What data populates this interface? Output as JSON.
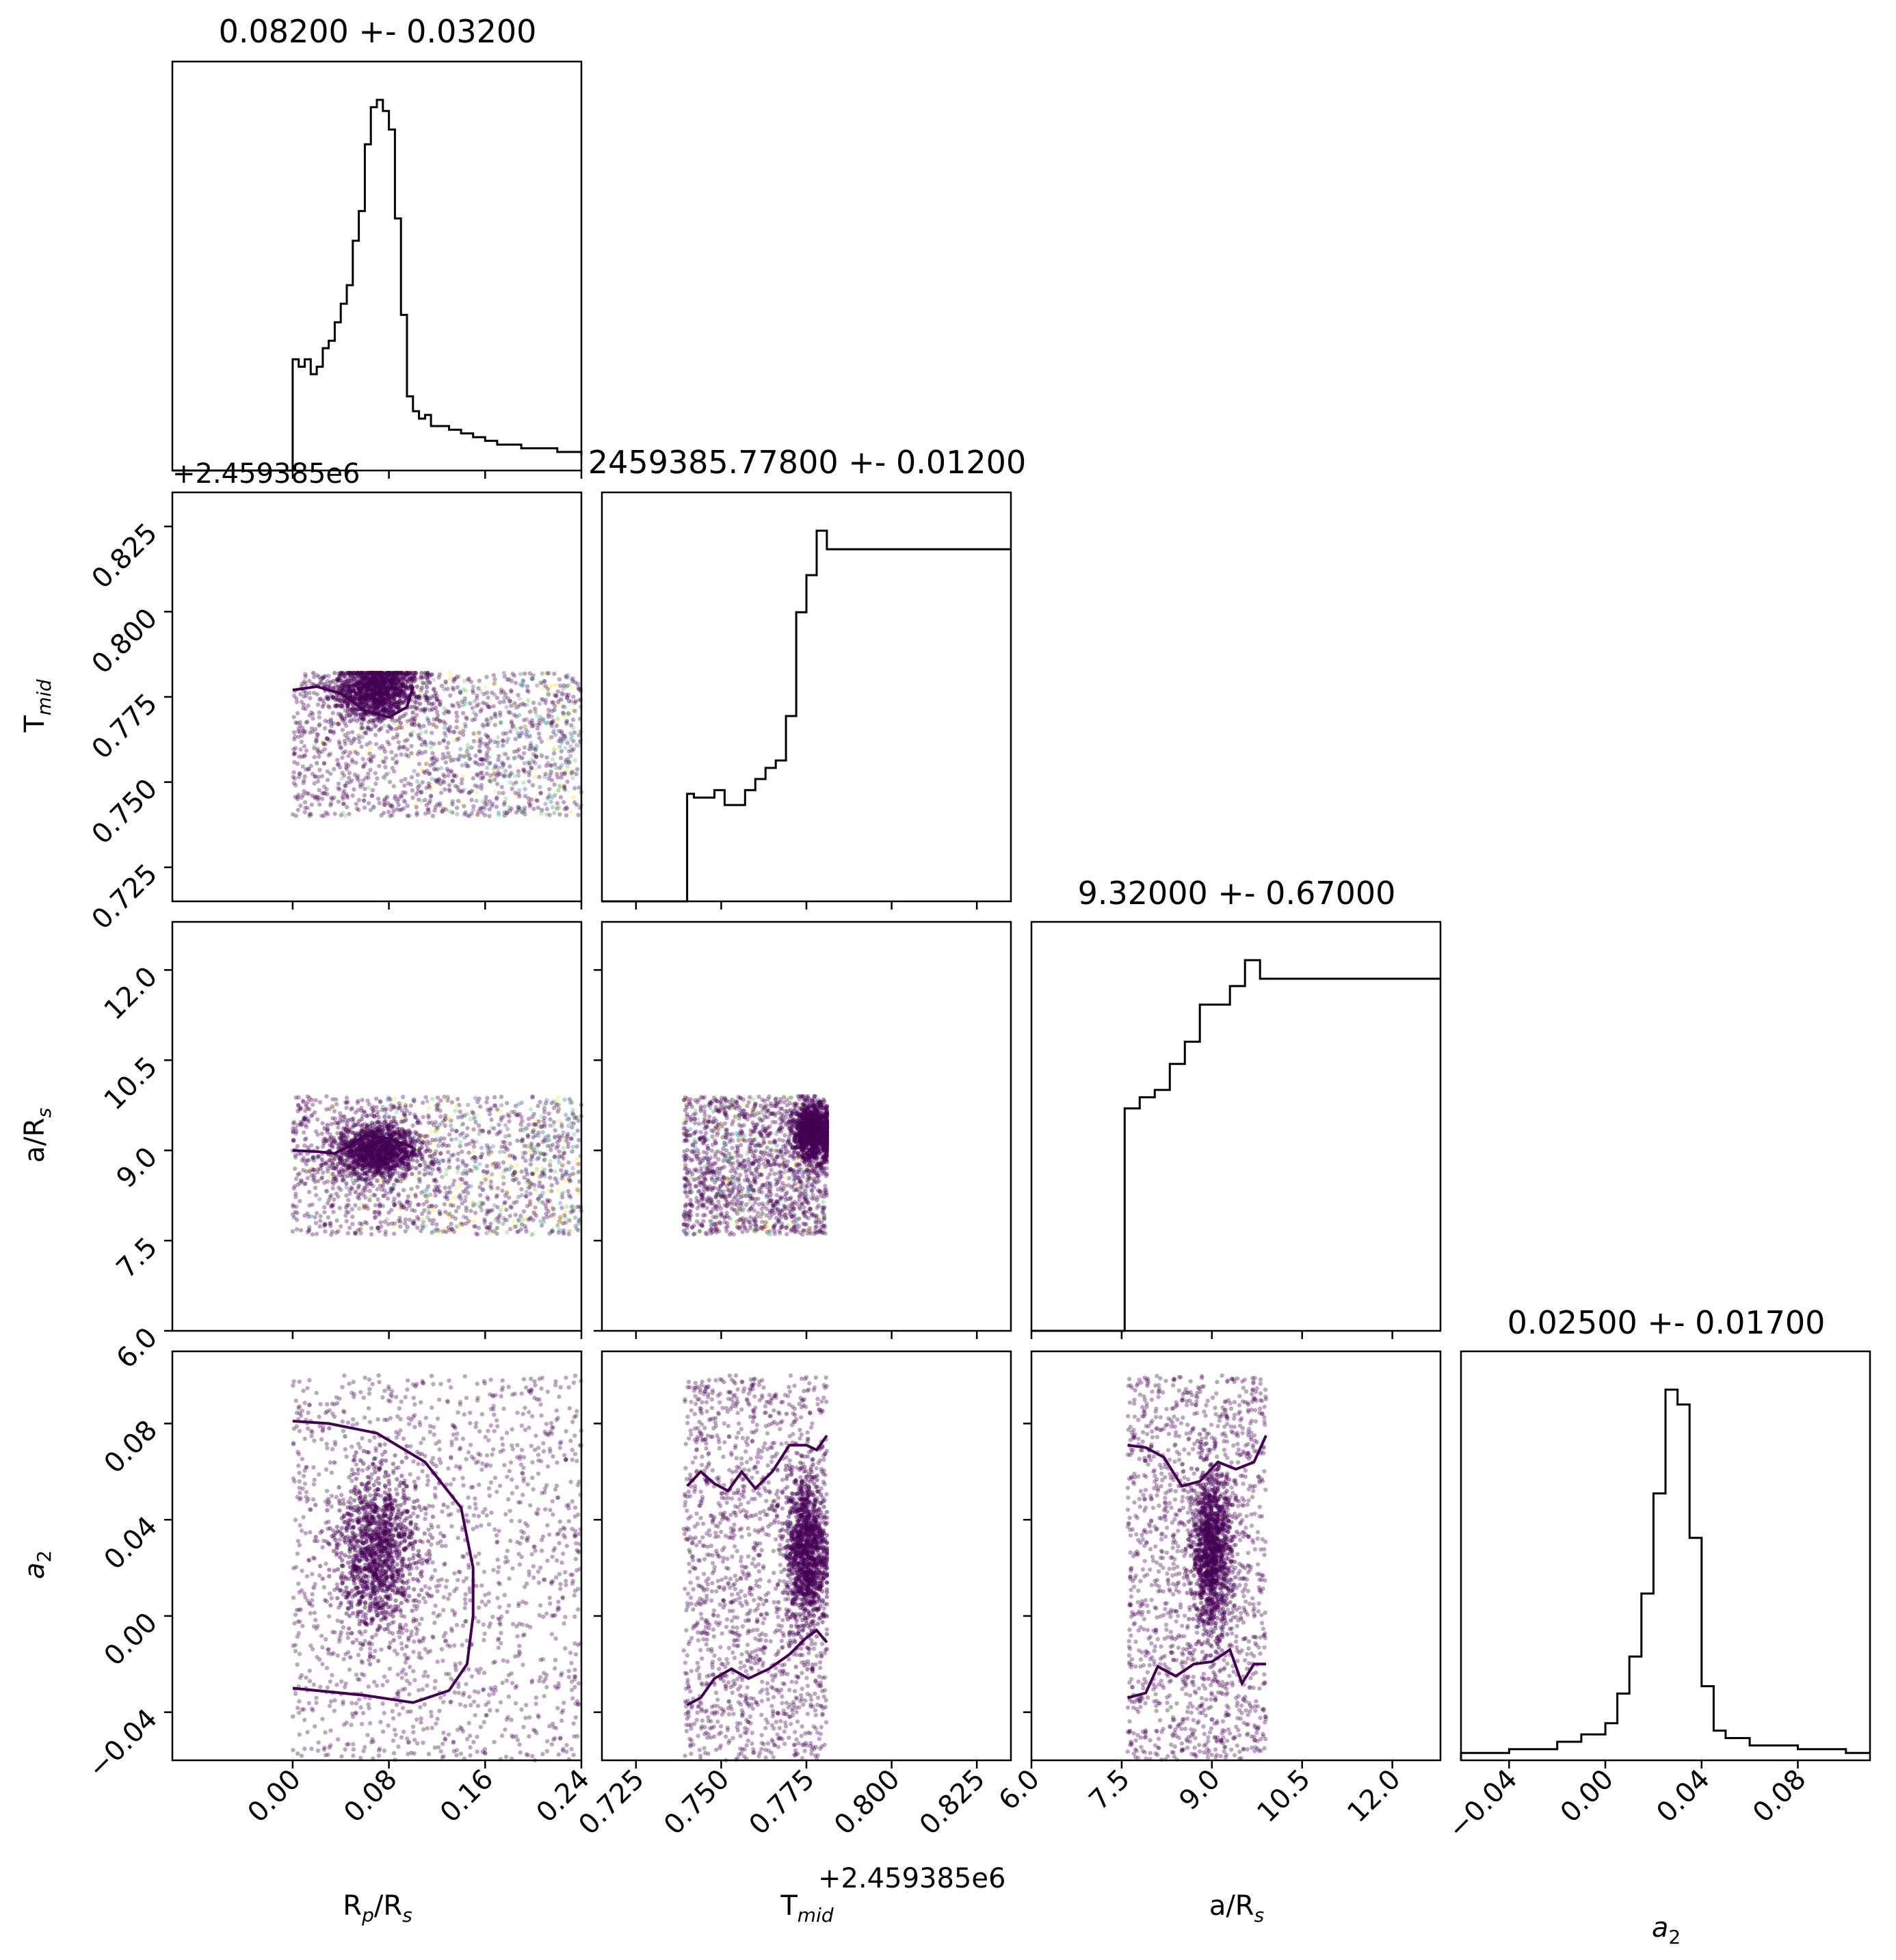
{
  "chart_data": [
    {
      "type": "histogram",
      "panel": "diag-rp",
      "title": "0.08200 +- 0.03200",
      "x": [
        -0.08,
        -0.07,
        -0.06,
        -0.05,
        -0.04,
        -0.03,
        -0.02,
        -0.01,
        0.0,
        0.005,
        0.01,
        0.015,
        0.02,
        0.025,
        0.03,
        0.035,
        0.04,
        0.045,
        0.05,
        0.055,
        0.06,
        0.065,
        0.07,
        0.075,
        0.08,
        0.085,
        0.09,
        0.095,
        0.1,
        0.105,
        0.11,
        0.115,
        0.12,
        0.13,
        0.14,
        0.15,
        0.16,
        0.17,
        0.18,
        0.19,
        0.2,
        0.21,
        0.22,
        0.23,
        0.24
      ],
      "values": [
        0,
        0,
        0,
        0,
        0,
        0,
        0,
        0,
        0.3,
        0.28,
        0.3,
        0.26,
        0.28,
        0.33,
        0.35,
        0.4,
        0.45,
        0.5,
        0.62,
        0.7,
        0.88,
        0.98,
        1.0,
        0.97,
        0.92,
        0.68,
        0.42,
        0.2,
        0.16,
        0.14,
        0.15,
        0.12,
        0.12,
        0.11,
        0.1,
        0.09,
        0.08,
        0.07,
        0.07,
        0.06,
        0.06,
        0.06,
        0.05,
        0.05,
        0.04
      ],
      "xlim": [
        -0.1,
        0.24
      ]
    },
    {
      "type": "histogram",
      "panel": "diag-tmid",
      "title": "2459385.77800 +- 0.01200",
      "x": [
        0.72,
        0.74,
        0.742,
        0.745,
        0.748,
        0.751,
        0.754,
        0.757,
        0.76,
        0.763,
        0.766,
        0.769,
        0.772,
        0.775,
        0.778,
        0.781
      ],
      "values": [
        0,
        0.29,
        0.28,
        0.28,
        0.3,
        0.26,
        0.26,
        0.3,
        0.33,
        0.36,
        0.38,
        0.5,
        0.78,
        0.88,
        1.0,
        0.95
      ],
      "xlim": [
        0.715,
        0.835
      ]
    },
    {
      "type": "histogram",
      "panel": "diag-ars",
      "title": "9.32000 +- 0.67000",
      "x": [
        6.0,
        7.55,
        7.8,
        8.05,
        8.3,
        8.55,
        8.8,
        9.05,
        9.3,
        9.55,
        9.8
      ],
      "values": [
        0,
        0.6,
        0.63,
        0.65,
        0.72,
        0.78,
        0.88,
        0.88,
        0.93,
        1.0,
        0.95
      ],
      "xlim": [
        6.0,
        12.8
      ]
    },
    {
      "type": "histogram",
      "panel": "diag-a2",
      "title": "0.02500 +- 0.01700",
      "x": [
        -0.06,
        -0.04,
        -0.02,
        -0.01,
        0.0,
        0.005,
        0.01,
        0.015,
        0.02,
        0.025,
        0.03,
        0.035,
        0.04,
        0.045,
        0.05,
        0.06,
        0.08,
        0.1
      ],
      "values": [
        0.02,
        0.03,
        0.05,
        0.07,
        0.1,
        0.18,
        0.28,
        0.45,
        0.72,
        1.0,
        0.96,
        0.6,
        0.2,
        0.08,
        0.06,
        0.04,
        0.03,
        0.02
      ],
      "xlim": [
        -0.06,
        0.11
      ]
    },
    {
      "type": "scatter",
      "panel": "tmid-vs-rp",
      "x_range": [
        0.0,
        0.24
      ],
      "y_range": [
        0.74,
        0.782
      ],
      "dense_center": [
        0.07,
        0.777
      ]
    },
    {
      "type": "scatter",
      "panel": "ars-vs-rp",
      "x_range": [
        0.0,
        0.24
      ],
      "y_range": [
        7.6,
        9.9
      ],
      "dense_center": [
        0.07,
        9.0
      ]
    },
    {
      "type": "scatter",
      "panel": "ars-vs-tmid",
      "x_range": [
        0.739,
        0.781
      ],
      "y_range": [
        7.6,
        9.9
      ],
      "dense_center": [
        0.777,
        9.3
      ]
    },
    {
      "type": "scatter",
      "panel": "a2-vs-rp",
      "x_range": [
        0.0,
        0.24
      ],
      "y_range": [
        -0.06,
        0.1
      ],
      "dense_center": [
        0.07,
        0.027
      ]
    },
    {
      "type": "scatter",
      "panel": "a2-vs-tmid",
      "x_range": [
        0.739,
        0.781
      ],
      "y_range": [
        -0.06,
        0.1
      ],
      "dense_center": [
        0.775,
        0.027
      ]
    },
    {
      "type": "scatter",
      "panel": "a2-vs-ars",
      "x_range": [
        7.6,
        9.9
      ],
      "y_range": [
        -0.06,
        0.1
      ],
      "dense_center": [
        9.0,
        0.027
      ]
    }
  ],
  "axes": {
    "rp": {
      "label_main": "R",
      "label_sub1": "p",
      "label_mid": "/R",
      "label_sub2": "s",
      "ticks": [
        "0.00",
        "0.08",
        "0.16",
        "0.24"
      ],
      "tick_values": [
        0.0,
        0.08,
        0.16,
        0.24
      ],
      "lim": [
        -0.1,
        0.24
      ]
    },
    "tmid": {
      "label_main": "T",
      "label_sub": "mid",
      "ticks": [
        "0.725",
        "0.750",
        "0.775",
        "0.800",
        "0.825"
      ],
      "tick_values": [
        0.725,
        0.75,
        0.775,
        0.8,
        0.825
      ],
      "lim": [
        0.715,
        0.835
      ],
      "offset": "+2.459385e6"
    },
    "ars": {
      "label_main": "a/R",
      "label_sub": "s",
      "ticks": [
        "6.0",
        "7.5",
        "9.0",
        "10.5",
        "12.0"
      ],
      "tick_values": [
        6.0,
        7.5,
        9.0,
        10.5,
        12.0
      ],
      "lim": [
        6.0,
        12.8
      ]
    },
    "a2": {
      "label_main": "a",
      "label_sub": "2",
      "ticks": [
        "−0.04",
        "0.00",
        "0.04",
        "0.08"
      ],
      "tick_values": [
        -0.04,
        0.0,
        0.04,
        0.08
      ],
      "lim": [
        -0.06,
        0.11
      ]
    }
  },
  "colors": {
    "scatter_main": "#440154",
    "scatter_accents": [
      "#3b528b",
      "#21918c",
      "#5ec962",
      "#fde725"
    ],
    "contour": "#440154",
    "histogram": "#000000"
  }
}
